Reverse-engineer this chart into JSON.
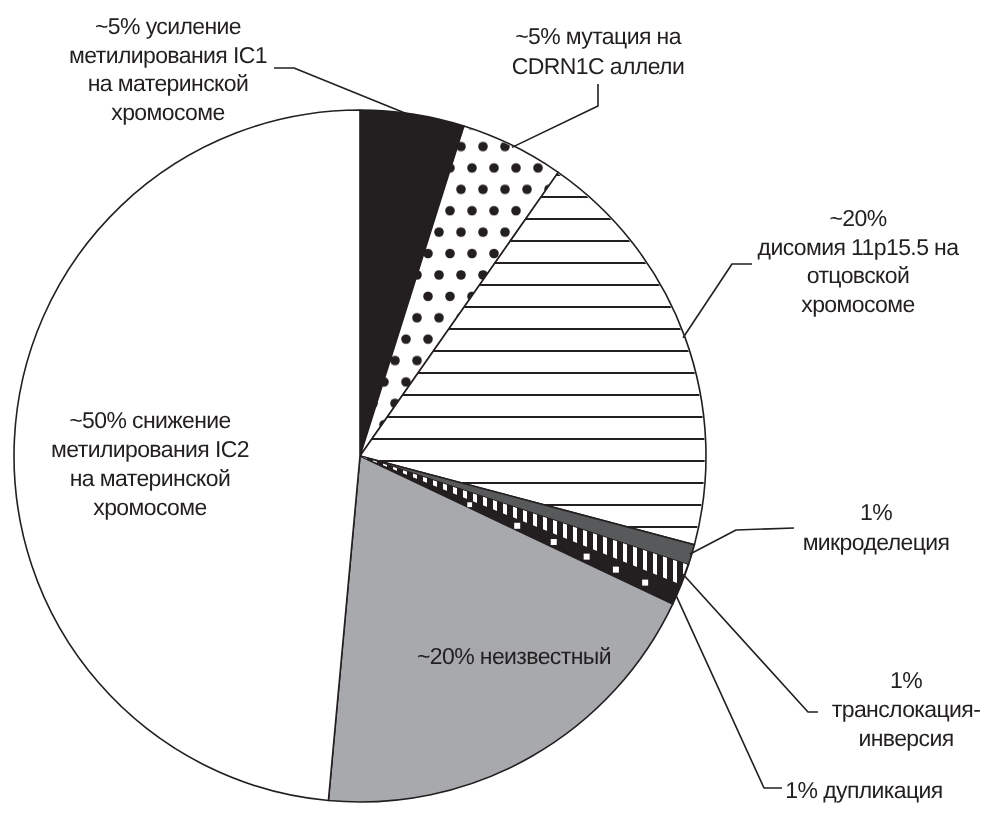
{
  "chart_data": {
    "type": "pie",
    "categories": [
      "усиление метилирования IC1 на материнской хромосоме",
      "мутация на CDRN1C аллели",
      "дисомия 11p15.5 на отцовской хромосоме",
      "микроделеция",
      "транслокация-инверсия",
      "дупликация",
      "неизвестный",
      "снижение метилирования IC2 на материнской хромосоме"
    ],
    "values": [
      5,
      5,
      20,
      1,
      1,
      1,
      20,
      50
    ],
    "value_labels": [
      "~5%",
      "~5%",
      "~20%",
      "1%",
      "1%",
      "1%",
      "~20%",
      "~50%"
    ],
    "colors": [
      "#231f20",
      "#ffffff",
      "#ffffff",
      "#58595b",
      "#231f20",
      "#231f20",
      "#a7a9ac",
      "#ffffff"
    ]
  }
}
